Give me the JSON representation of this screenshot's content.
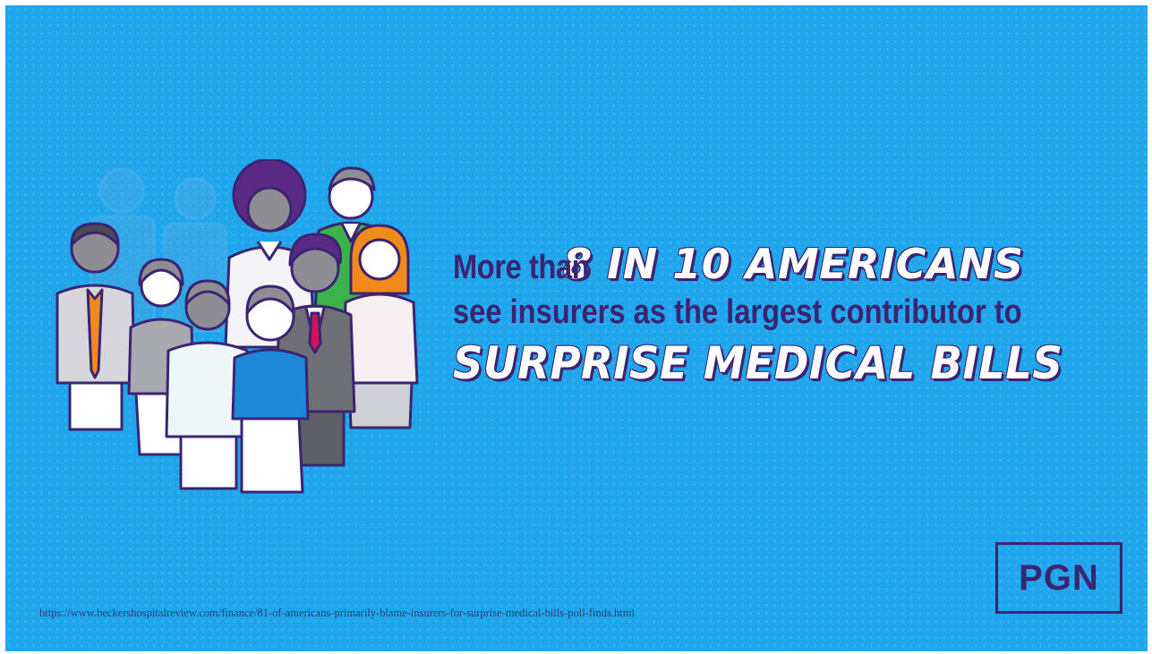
{
  "headline": {
    "lead": "More than",
    "stat": "8 IN 10 AMERICANS",
    "middle": "see insurers as the largest contributor to",
    "emphasis": "SURPRISE MEDICAL BILLS"
  },
  "source_url": "https://www.beckershospitalreview.com/finance/81-of-americans-primarily-blame-insurers-for-surprise-medical-bills-poll-finds.html",
  "logo": {
    "text": "PGN"
  },
  "illustration": {
    "icon": "group-of-people-icon"
  },
  "colors": {
    "background": "#1fa6ec",
    "accent": "#3b2472",
    "highlight_text": "#ffffff"
  }
}
